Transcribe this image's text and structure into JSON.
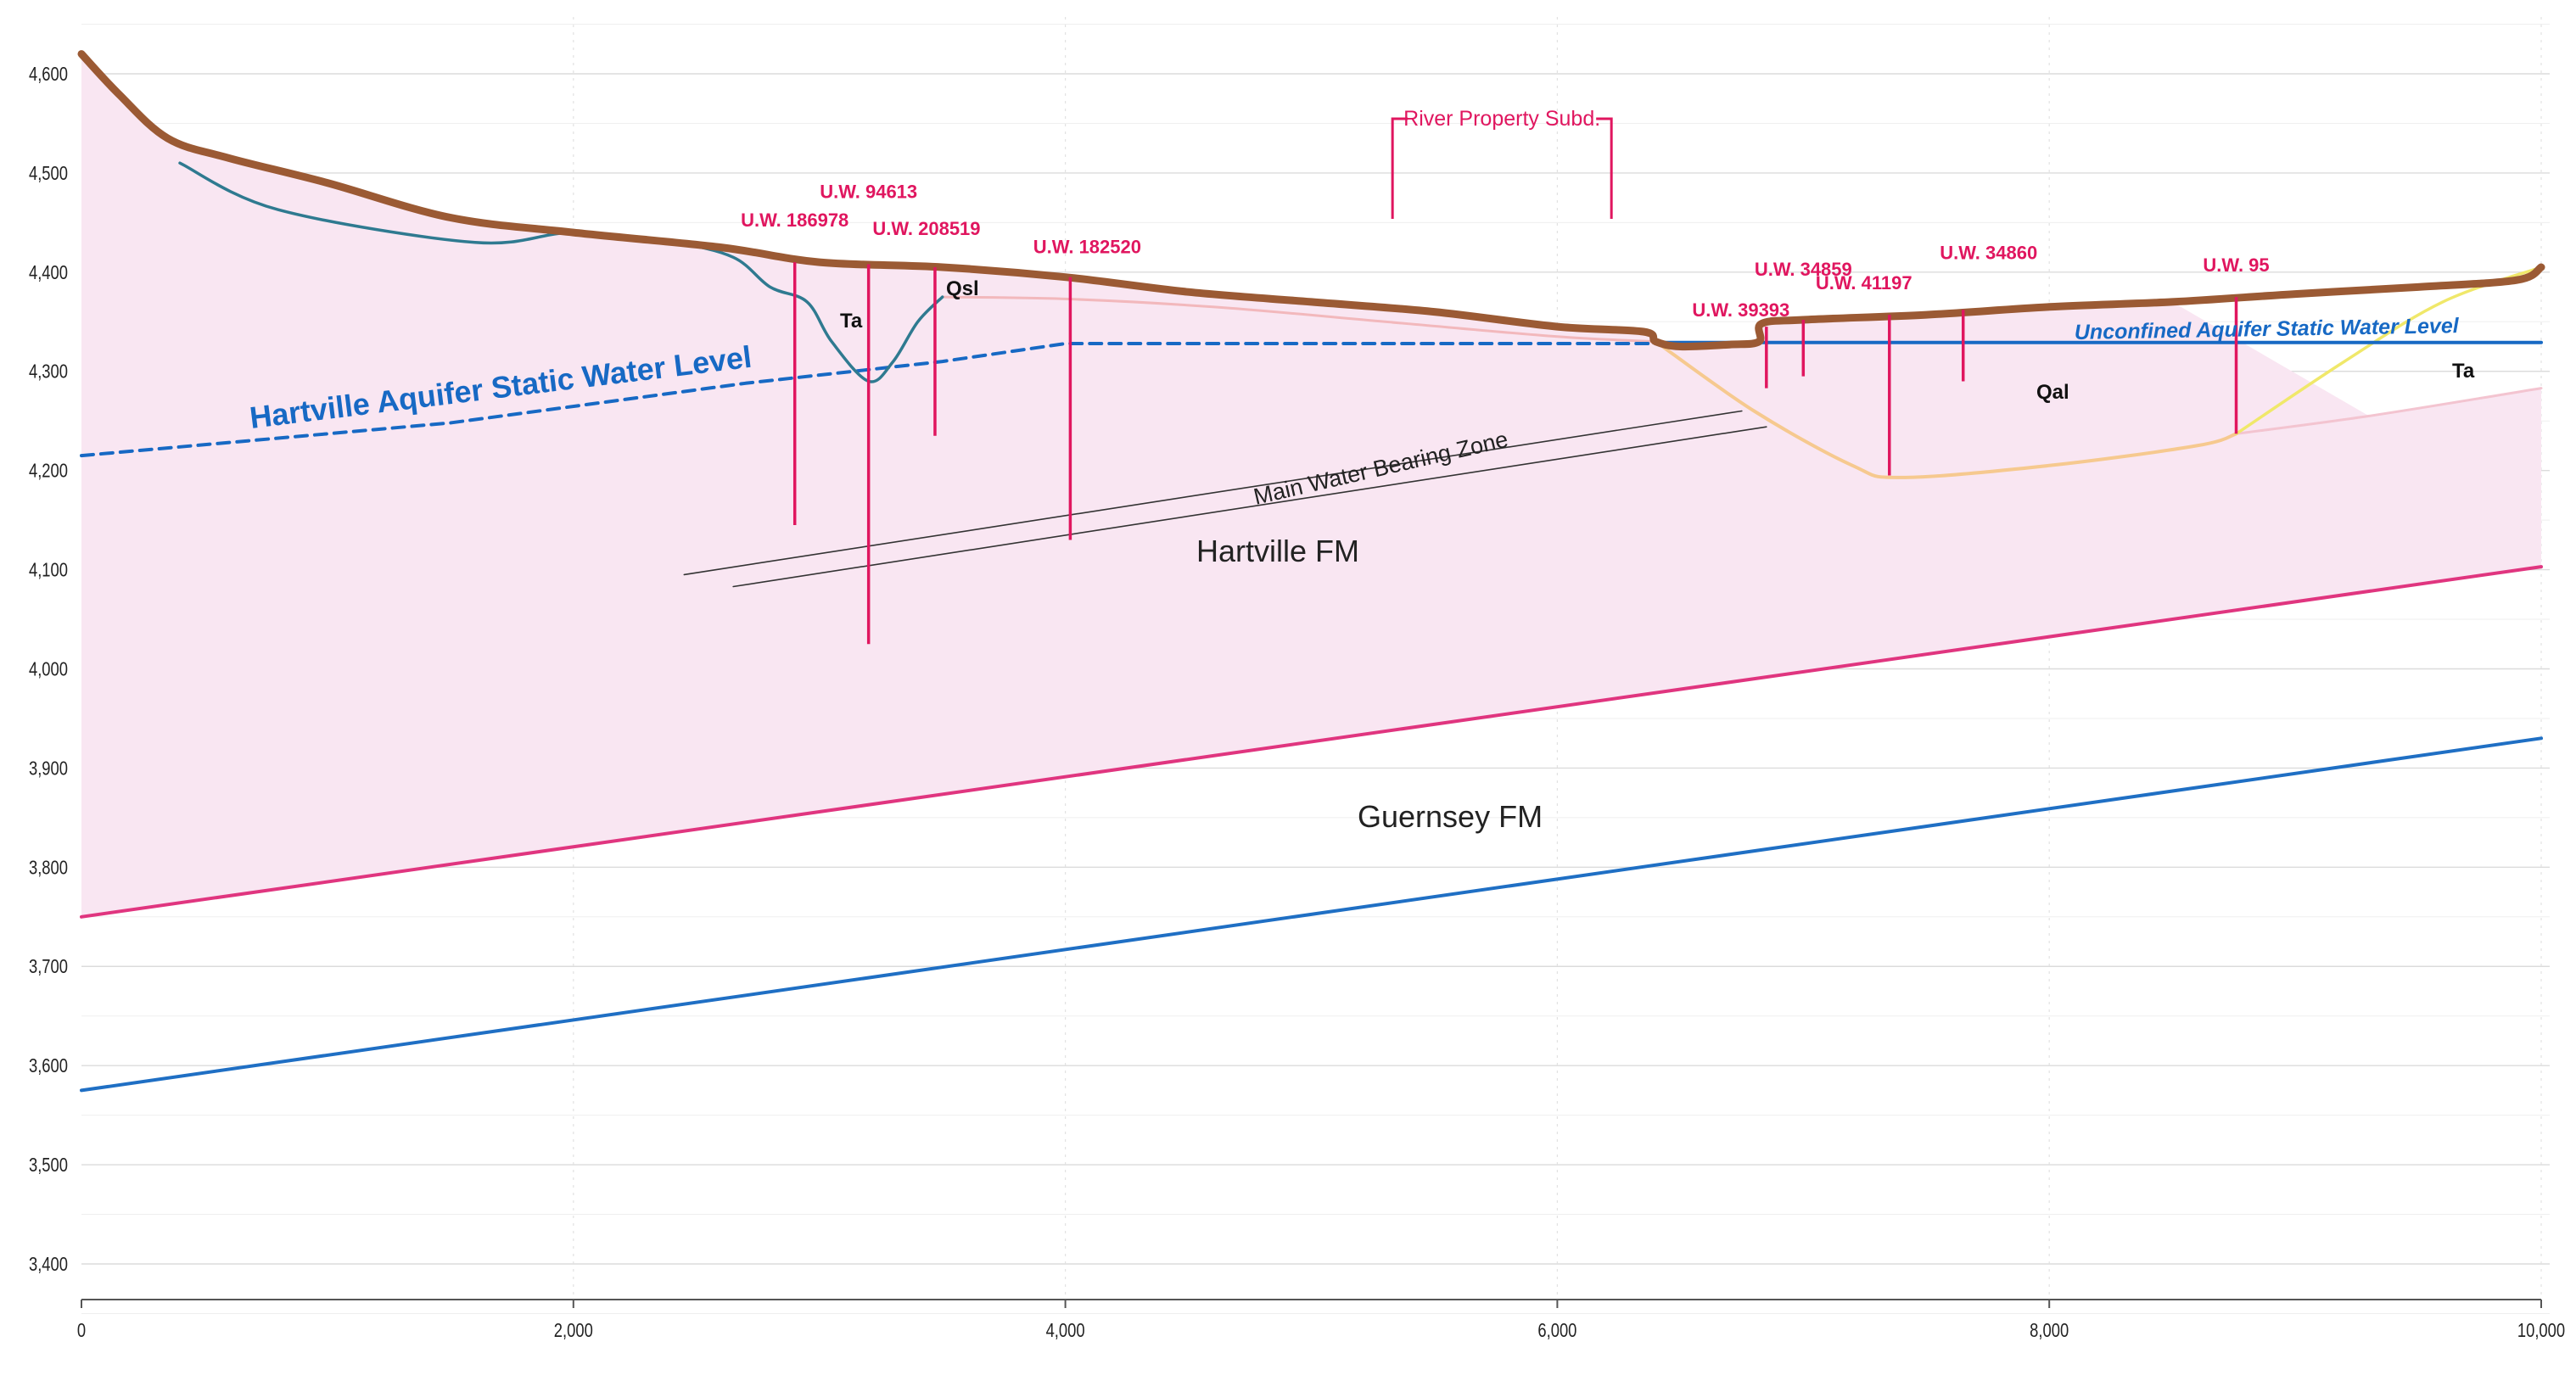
{
  "chart_data": {
    "type": "line",
    "xlim": [
      0,
      10000
    ],
    "ylim": [
      3350,
      4650
    ],
    "x_ticks": [
      0,
      2000,
      4000,
      6000,
      8000,
      10000
    ],
    "x_tick_labels": [
      "0",
      "2,000",
      "4,000",
      "6,000",
      "8,000",
      "10,000"
    ],
    "y_ticks": [
      3400,
      3500,
      3600,
      3700,
      3800,
      3900,
      4000,
      4100,
      4200,
      4300,
      4400,
      4500,
      4600
    ],
    "y_tick_labels": [
      "3,400",
      "3,500",
      "3,600",
      "3,700",
      "3,800",
      "3,900",
      "4,000",
      "4,100",
      "4,200",
      "4,300",
      "4,400",
      "4,500",
      "4,600"
    ],
    "grid": true,
    "series": {
      "ground_surface": {
        "color": "#9b5a34",
        "points": [
          [
            0,
            4620
          ],
          [
            150,
            4580
          ],
          [
            350,
            4535
          ],
          [
            600,
            4515
          ],
          [
            1000,
            4490
          ],
          [
            1500,
            4455
          ],
          [
            2000,
            4440
          ],
          [
            2600,
            4425
          ],
          [
            3000,
            4410
          ],
          [
            3500,
            4405
          ],
          [
            4000,
            4395
          ],
          [
            4500,
            4380
          ],
          [
            5000,
            4370
          ],
          [
            5500,
            4360
          ],
          [
            6000,
            4345
          ],
          [
            6350,
            4340
          ],
          [
            6400,
            4330
          ],
          [
            6500,
            4325
          ],
          [
            6700,
            4327
          ],
          [
            6820,
            4330
          ],
          [
            6830,
            4348
          ],
          [
            7000,
            4352
          ],
          [
            7500,
            4357
          ],
          [
            8000,
            4365
          ],
          [
            8500,
            4370
          ],
          [
            9000,
            4378
          ],
          [
            9500,
            4385
          ],
          [
            9900,
            4392
          ],
          [
            10000,
            4405
          ]
        ]
      },
      "teal_profile": {
        "color": "#2f7a90",
        "points": [
          [
            400,
            4510
          ],
          [
            800,
            4463
          ],
          [
            1600,
            4430
          ],
          [
            2000,
            4440
          ],
          [
            2400,
            4430
          ],
          [
            2650,
            4415
          ],
          [
            2800,
            4385
          ],
          [
            2950,
            4370
          ],
          [
            3050,
            4330
          ],
          [
            3200,
            4290
          ],
          [
            3300,
            4310
          ],
          [
            3400,
            4350
          ],
          [
            3500,
            4375
          ]
        ]
      },
      "hartville_water_level": {
        "color": "#1769c4",
        "style": "dashed",
        "points": [
          [
            0,
            4215
          ],
          [
            1500,
            4248
          ],
          [
            2700,
            4288
          ],
          [
            3500,
            4310
          ],
          [
            4000,
            4328
          ],
          [
            6400,
            4328
          ]
        ]
      },
      "unconfined_water_level": {
        "color": "#1769c4",
        "points": [
          [
            6400,
            4329
          ],
          [
            10000,
            4329
          ]
        ]
      },
      "qsl_bottom": {
        "color": "#f2b8bc",
        "points": [
          [
            3500,
            4375
          ],
          [
            4000,
            4373
          ],
          [
            4600,
            4365
          ],
          [
            5300,
            4350
          ],
          [
            6000,
            4335
          ],
          [
            6400,
            4330
          ]
        ]
      },
      "qal_bottom": {
        "color": "#f6c98f",
        "points": [
          [
            6400,
            4330
          ],
          [
            6800,
            4260
          ],
          [
            7200,
            4205
          ],
          [
            7400,
            4193
          ],
          [
            8000,
            4205
          ],
          [
            8600,
            4225
          ],
          [
            8760,
            4237
          ]
        ]
      },
      "ta_right": {
        "color": "#f0e86a",
        "points": [
          [
            8760,
            4237
          ],
          [
            9200,
            4310
          ],
          [
            9600,
            4370
          ],
          [
            10000,
            4405
          ]
        ]
      },
      "hartville_top_right": {
        "color": "#f3c4d0",
        "points": [
          [
            8760,
            4237
          ],
          [
            9300,
            4255
          ],
          [
            10000,
            4283
          ]
        ]
      },
      "zone_upper": {
        "color": "#333333",
        "points": [
          [
            2450,
            4095
          ],
          [
            6750,
            4260
          ]
        ]
      },
      "zone_lower": {
        "color": "#333333",
        "points": [
          [
            2650,
            4083
          ],
          [
            6850,
            4244
          ]
        ]
      },
      "hartville_base": {
        "color": "#e0357f",
        "points": [
          [
            0,
            3750
          ],
          [
            10000,
            4103
          ]
        ]
      },
      "guernsey_base": {
        "color": "#1f6fc4",
        "points": [
          [
            0,
            3575
          ],
          [
            10000,
            3930
          ]
        ]
      }
    },
    "wells": [
      {
        "label": "U.W. 186978",
        "x": 2900,
        "top": 4410,
        "bottom": 4145
      },
      {
        "label": "U.W. 94613",
        "x": 3200,
        "top": 4408,
        "bottom": 4025
      },
      {
        "label": "U.W. 208519",
        "x": 3470,
        "top": 4405,
        "bottom": 4235
      },
      {
        "label": "U.W. 182520",
        "x": 4020,
        "top": 4395,
        "bottom": 4130
      },
      {
        "label": "U.W. 39393",
        "x": 6850,
        "top": 4345,
        "bottom": 4283
      },
      {
        "label": "U.W. 34859",
        "x": 7000,
        "top": 4352,
        "bottom": 4295
      },
      {
        "label": "U.W. 41197",
        "x": 7350,
        "top": 4357,
        "bottom": 4195
      },
      {
        "label": "U.W. 34860",
        "x": 7650,
        "top": 4362,
        "bottom": 4290
      },
      {
        "label": "U.W. 95",
        "x": 8760,
        "top": 4375,
        "bottom": 4237
      }
    ],
    "annotations": {
      "hartville_water_label": "Hartville Aquifer Static Water Level",
      "unconfined_water_label": "Unconfined Aquifer Static Water Level",
      "main_zone_label": "Main Water Bearing Zone",
      "hartville_fm": "Hartville FM",
      "guernsey_fm": "Guernsey FM",
      "ta_left": "Ta",
      "qsl": "Qsl",
      "qal": "Qal",
      "ta_right": "Ta",
      "river_subd": "River Property Subd."
    },
    "river_subd_range": [
      5330,
      6220
    ]
  }
}
